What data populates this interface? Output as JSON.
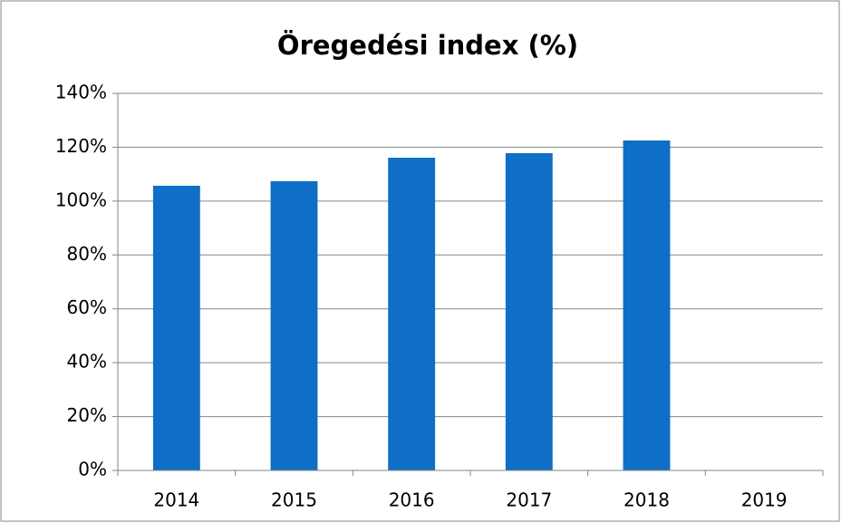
{
  "chart_data": {
    "type": "bar",
    "title": "Öregedési index (%)",
    "categories": [
      "2014",
      "2015",
      "2016",
      "2017",
      "2018",
      "2019"
    ],
    "values": [
      105.7,
      107.4,
      116.1,
      117.8,
      122.5,
      null
    ],
    "color": "#0f6fc6",
    "ylim": [
      0,
      140
    ],
    "yticks": [
      {
        "value": 0,
        "label": "0%"
      },
      {
        "value": 20,
        "label": "20%"
      },
      {
        "value": 40,
        "label": "40%"
      },
      {
        "value": 60,
        "label": "60%"
      },
      {
        "value": 80,
        "label": "80%"
      },
      {
        "value": 100,
        "label": "100%"
      },
      {
        "value": 120,
        "label": "120%"
      },
      {
        "value": 140,
        "label": "140%"
      }
    ],
    "grid": true
  }
}
